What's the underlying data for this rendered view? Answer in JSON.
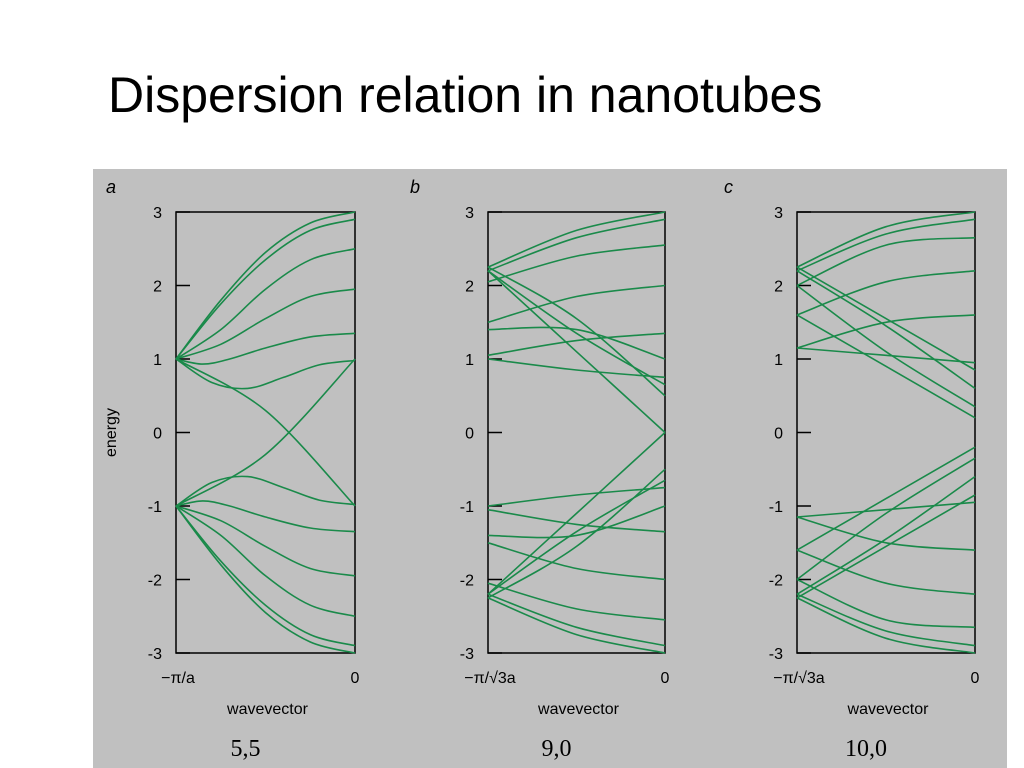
{
  "slide": {
    "title": "Dispersion relation in nanotubes"
  },
  "style": {
    "line_color": "#1a8a4a",
    "panel_bg": "#c0c0c0",
    "frame_color": "#000000"
  },
  "chart_data": [
    {
      "type": "line",
      "panel_label": "a",
      "caption": "5,5",
      "xlabel": "wavevector",
      "ylabel": "energy",
      "x_tick_labels": [
        "−π/a",
        "0"
      ],
      "xlim": [
        -1,
        0
      ],
      "ylim": [
        -3,
        3
      ],
      "y_ticks": [
        3,
        2,
        1,
        0,
        -1,
        -2,
        -3
      ],
      "series": [
        {
          "x": [
            -1,
            -0.75,
            -0.5,
            -0.25,
            0
          ],
          "y": [
            1,
            1.8,
            2.45,
            2.85,
            3.0
          ]
        },
        {
          "x": [
            -1,
            -0.75,
            -0.5,
            -0.25,
            0
          ],
          "y": [
            1,
            1.75,
            2.35,
            2.75,
            2.9
          ]
        },
        {
          "x": [
            -1,
            -0.75,
            -0.5,
            -0.25,
            0
          ],
          "y": [
            1,
            1.4,
            1.95,
            2.35,
            2.5
          ]
        },
        {
          "x": [
            -1,
            -0.75,
            -0.5,
            -0.25,
            0
          ],
          "y": [
            1,
            1.2,
            1.55,
            1.85,
            1.95
          ]
        },
        {
          "x": [
            -1,
            -0.85,
            -0.7,
            -0.5,
            -0.25,
            0
          ],
          "y": [
            1,
            0.93,
            1.0,
            1.15,
            1.3,
            1.35
          ]
        },
        {
          "x": [
            -1,
            -0.8,
            -0.6,
            -0.4,
            -0.2,
            0
          ],
          "y": [
            1,
            0.68,
            0.6,
            0.75,
            0.92,
            0.98
          ]
        },
        {
          "x": [
            -1,
            -0.5,
            0
          ],
          "y": [
            1,
            0.3,
            -1.0
          ]
        },
        {
          "x": [
            -1,
            -0.5,
            0
          ],
          "y": [
            -1,
            -0.3,
            1.0
          ]
        },
        {
          "x": [
            -1,
            -0.8,
            -0.6,
            -0.4,
            -0.2,
            0
          ],
          "y": [
            -1,
            -0.68,
            -0.6,
            -0.75,
            -0.92,
            -0.98
          ]
        },
        {
          "x": [
            -1,
            -0.85,
            -0.7,
            -0.5,
            -0.25,
            0
          ],
          "y": [
            -1,
            -0.93,
            -1.0,
            -1.15,
            -1.3,
            -1.35
          ]
        },
        {
          "x": [
            -1,
            -0.75,
            -0.5,
            -0.25,
            0
          ],
          "y": [
            -1,
            -1.2,
            -1.55,
            -1.85,
            -1.95
          ]
        },
        {
          "x": [
            -1,
            -0.75,
            -0.5,
            -0.25,
            0
          ],
          "y": [
            -1,
            -1.4,
            -1.95,
            -2.35,
            -2.5
          ]
        },
        {
          "x": [
            -1,
            -0.75,
            -0.5,
            -0.25,
            0
          ],
          "y": [
            -1,
            -1.75,
            -2.35,
            -2.75,
            -2.9
          ]
        },
        {
          "x": [
            -1,
            -0.75,
            -0.5,
            -0.25,
            0
          ],
          "y": [
            -1,
            -1.8,
            -2.45,
            -2.85,
            -3.0
          ]
        }
      ]
    },
    {
      "type": "line",
      "panel_label": "b",
      "caption": "9,0",
      "xlabel": "wavevector",
      "ylabel": "",
      "x_tick_labels": [
        "−π/√3a",
        "0"
      ],
      "xlim": [
        -1,
        0
      ],
      "ylim": [
        -3,
        3
      ],
      "y_ticks": [
        3,
        2,
        1,
        0,
        -1,
        -2,
        -3
      ],
      "series": [
        {
          "x": [
            -1,
            -0.5,
            0
          ],
          "y": [
            2.25,
            2.75,
            3.0
          ]
        },
        {
          "x": [
            -1,
            -0.5,
            0
          ],
          "y": [
            2.2,
            2.65,
            2.9
          ]
        },
        {
          "x": [
            -1,
            -0.5,
            0
          ],
          "y": [
            2.05,
            2.4,
            2.55
          ]
        },
        {
          "x": [
            -1,
            -0.5,
            0
          ],
          "y": [
            1.5,
            1.85,
            2.0
          ]
        },
        {
          "x": [
            -1,
            -0.5,
            0
          ],
          "y": [
            1.05,
            1.25,
            1.35
          ]
        },
        {
          "x": [
            -1,
            -0.5,
            0
          ],
          "y": [
            1.0,
            0.85,
            0.75
          ]
        },
        {
          "x": [
            -1,
            -0.5,
            0
          ],
          "y": [
            1.4,
            1.4,
            1.0
          ]
        },
        {
          "x": [
            -1,
            -0.5,
            0
          ],
          "y": [
            2.25,
            1.55,
            0.5
          ]
        },
        {
          "x": [
            -1,
            -0.5,
            0
          ],
          "y": [
            2.2,
            1.35,
            0.65
          ]
        },
        {
          "x": [
            -1,
            -0.5,
            0
          ],
          "y": [
            2.2,
            1.1,
            0.0
          ]
        },
        {
          "x": [
            -1,
            -0.5,
            0
          ],
          "y": [
            -2.25,
            -2.75,
            -3.0
          ]
        },
        {
          "x": [
            -1,
            -0.5,
            0
          ],
          "y": [
            -2.2,
            -2.65,
            -2.9
          ]
        },
        {
          "x": [
            -1,
            -0.5,
            0
          ],
          "y": [
            -2.05,
            -2.4,
            -2.55
          ]
        },
        {
          "x": [
            -1,
            -0.5,
            0
          ],
          "y": [
            -1.5,
            -1.85,
            -2.0
          ]
        },
        {
          "x": [
            -1,
            -0.5,
            0
          ],
          "y": [
            -1.05,
            -1.25,
            -1.35
          ]
        },
        {
          "x": [
            -1,
            -0.5,
            0
          ],
          "y": [
            -1.0,
            -0.85,
            -0.75
          ]
        },
        {
          "x": [
            -1,
            -0.5,
            0
          ],
          "y": [
            -1.4,
            -1.4,
            -1.0
          ]
        },
        {
          "x": [
            -1,
            -0.5,
            0
          ],
          "y": [
            -2.25,
            -1.55,
            -0.5
          ]
        },
        {
          "x": [
            -1,
            -0.5,
            0
          ],
          "y": [
            -2.2,
            -1.35,
            -0.65
          ]
        },
        {
          "x": [
            -1,
            -0.5,
            0
          ],
          "y": [
            -2.2,
            -1.1,
            0.0
          ]
        }
      ]
    },
    {
      "type": "line",
      "panel_label": "c",
      "caption": "10,0",
      "xlabel": "wavevector",
      "ylabel": "",
      "x_tick_labels": [
        "−π/√3a",
        "0"
      ],
      "xlim": [
        -1,
        0
      ],
      "ylim": [
        -3,
        3
      ],
      "y_ticks": [
        3,
        2,
        1,
        0,
        -1,
        -2,
        -3
      ],
      "series": [
        {
          "x": [
            -1,
            -0.5,
            0
          ],
          "y": [
            2.25,
            2.8,
            3.0
          ]
        },
        {
          "x": [
            -1,
            -0.5,
            0
          ],
          "y": [
            2.2,
            2.7,
            2.9
          ]
        },
        {
          "x": [
            -1,
            -0.5,
            0
          ],
          "y": [
            2.0,
            2.55,
            2.65
          ]
        },
        {
          "x": [
            -1,
            -0.5,
            0
          ],
          "y": [
            1.6,
            2.05,
            2.2
          ]
        },
        {
          "x": [
            -1,
            -0.5,
            0
          ],
          "y": [
            1.15,
            1.5,
            1.6
          ]
        },
        {
          "x": [
            -1,
            -0.5,
            0
          ],
          "y": [
            1.15,
            1.05,
            0.95
          ]
        },
        {
          "x": [
            -1,
            -0.5,
            0
          ],
          "y": [
            2.25,
            1.55,
            0.85
          ]
        },
        {
          "x": [
            -1,
            -0.5,
            0
          ],
          "y": [
            2.2,
            1.45,
            0.6
          ]
        },
        {
          "x": [
            -1,
            -0.5,
            0
          ],
          "y": [
            2.0,
            1.1,
            0.35
          ]
        },
        {
          "x": [
            -1,
            -0.5,
            0
          ],
          "y": [
            1.6,
            0.9,
            0.2
          ]
        },
        {
          "x": [
            -1,
            -0.5,
            0
          ],
          "y": [
            -2.25,
            -2.8,
            -3.0
          ]
        },
        {
          "x": [
            -1,
            -0.5,
            0
          ],
          "y": [
            -2.2,
            -2.7,
            -2.9
          ]
        },
        {
          "x": [
            -1,
            -0.5,
            0
          ],
          "y": [
            -2.0,
            -2.55,
            -2.65
          ]
        },
        {
          "x": [
            -1,
            -0.5,
            0
          ],
          "y": [
            -1.6,
            -2.05,
            -2.2
          ]
        },
        {
          "x": [
            -1,
            -0.5,
            0
          ],
          "y": [
            -1.15,
            -1.5,
            -1.6
          ]
        },
        {
          "x": [
            -1,
            -0.5,
            0
          ],
          "y": [
            -1.15,
            -1.05,
            -0.95
          ]
        },
        {
          "x": [
            -1,
            -0.5,
            0
          ],
          "y": [
            -2.25,
            -1.55,
            -0.85
          ]
        },
        {
          "x": [
            -1,
            -0.5,
            0
          ],
          "y": [
            -2.2,
            -1.45,
            -0.6
          ]
        },
        {
          "x": [
            -1,
            -0.5,
            0
          ],
          "y": [
            -2.0,
            -1.1,
            -0.35
          ]
        },
        {
          "x": [
            -1,
            -0.5,
            0
          ],
          "y": [
            -1.6,
            -0.9,
            -0.2
          ]
        }
      ]
    }
  ]
}
